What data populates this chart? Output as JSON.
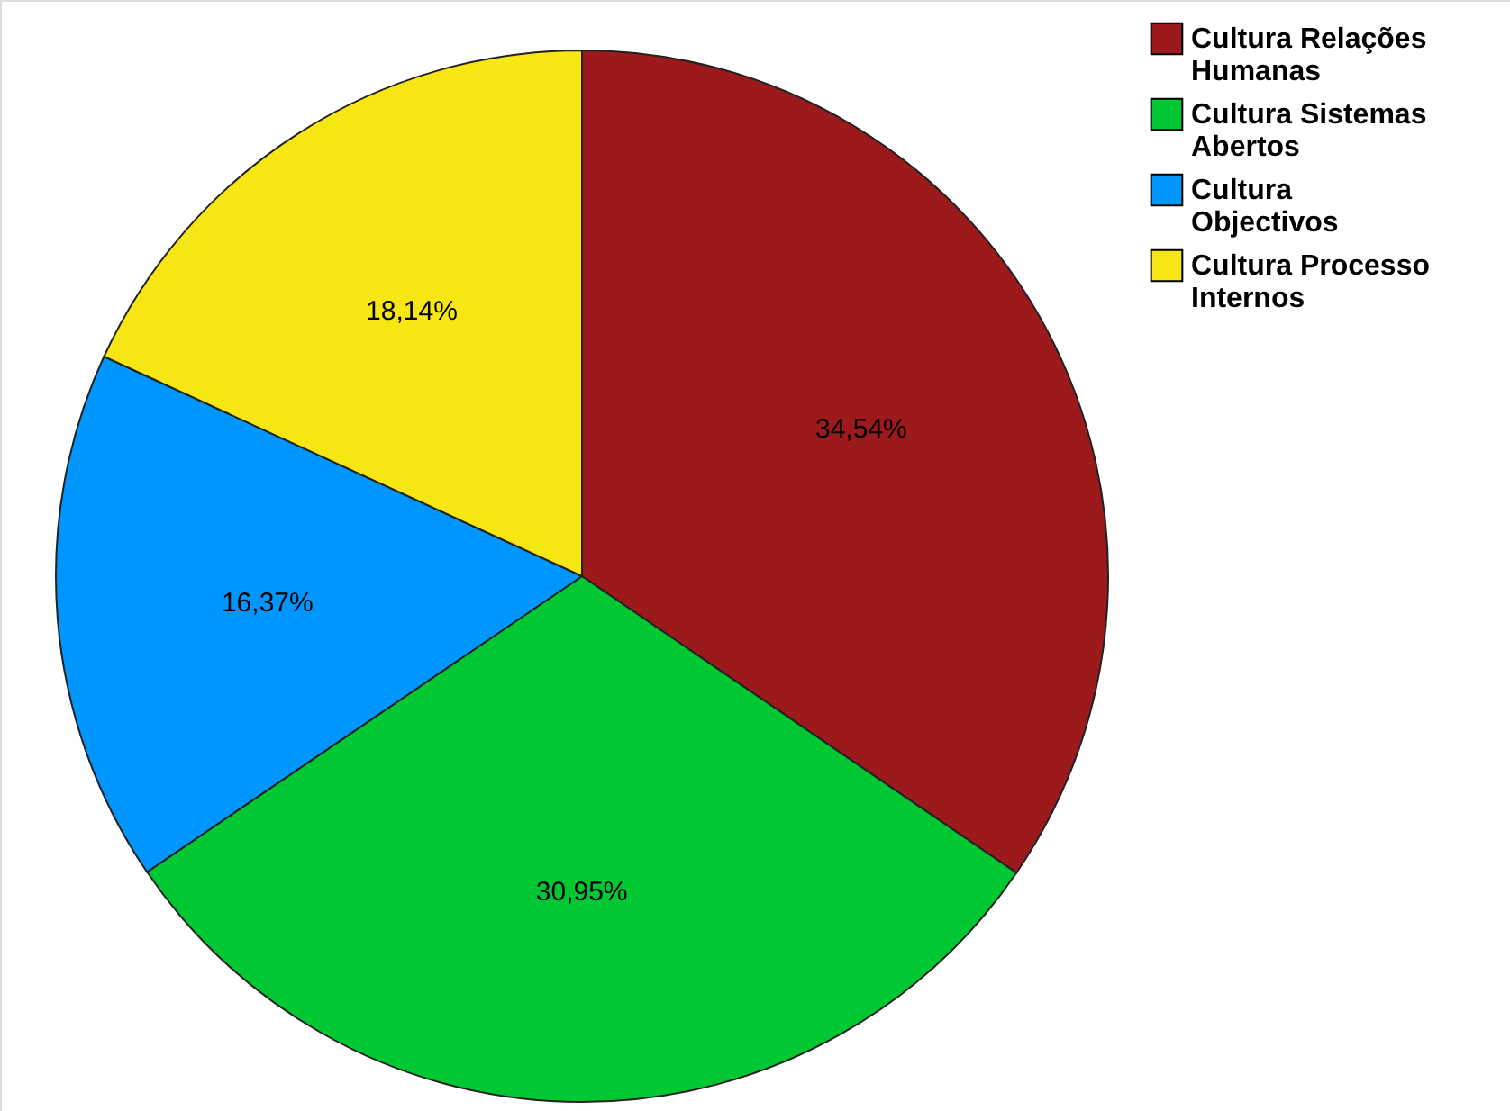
{
  "chart_data": {
    "type": "pie",
    "categories": [
      "Cultura Relações Humanas",
      "Cultura Sistemas Abertos",
      "Cultura Objectivos",
      "Cultura Processo Internos"
    ],
    "values": [
      34.54,
      30.95,
      16.37,
      18.14
    ],
    "colors": [
      "#9c1a1c",
      "#00c832",
      "#0096ff",
      "#f5e614"
    ],
    "value_labels": [
      "34,54%",
      "30,95%",
      "16,37%",
      "18,14%"
    ],
    "legend": "top right"
  }
}
